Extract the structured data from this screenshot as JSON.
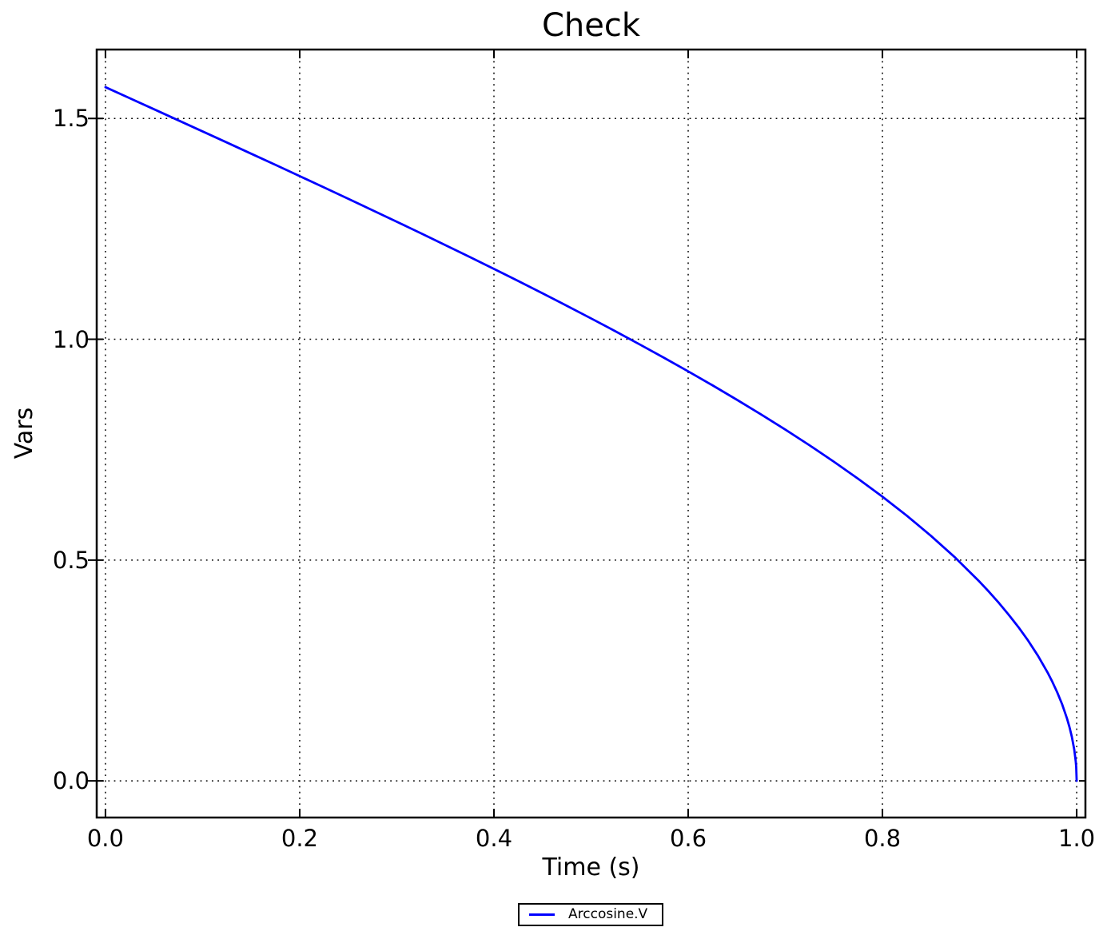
{
  "figure": {
    "background": "#ffffff"
  },
  "colors": {
    "line": "#0000ff",
    "axis": "#000000",
    "grid": "#000000",
    "text": "#000000"
  },
  "legend": {
    "position": "bottom-center",
    "entries": [
      {
        "label": "Arccosine.V",
        "color": "#0000ff"
      }
    ]
  },
  "chart_data": {
    "type": "line",
    "title": "Check",
    "xlabel": "Time (s)",
    "ylabel": "Vars",
    "xlim": [
      -0.009,
      1.009
    ],
    "ylim": [
      -0.083,
      1.656
    ],
    "xticks": [
      0.0,
      0.2,
      0.4,
      0.6,
      0.8,
      1.0
    ],
    "xtick_labels": [
      "0.0",
      "0.2",
      "0.4",
      "0.6",
      "0.8",
      "1.0"
    ],
    "yticks": [
      0.0,
      0.5,
      1.0,
      1.5
    ],
    "ytick_labels": [
      "0.0",
      "0.5",
      "1.0",
      "1.5"
    ],
    "grid": true,
    "grid_style": "dotted",
    "legend_position": "bottom-center",
    "series": [
      {
        "name": "Arccosine.V",
        "color": "#0000ff",
        "x": [
          0,
          0.025,
          0.05,
          0.075,
          0.1,
          0.125,
          0.15,
          0.175,
          0.2,
          0.225,
          0.25,
          0.275,
          0.3,
          0.325,
          0.35,
          0.375,
          0.4,
          0.425,
          0.45,
          0.475,
          0.5,
          0.525,
          0.55,
          0.575,
          0.6,
          0.625,
          0.65,
          0.675,
          0.7,
          0.725,
          0.75,
          0.775,
          0.8,
          0.825,
          0.85,
          0.875,
          0.9,
          0.91,
          0.92,
          0.93,
          0.94,
          0.95,
          0.96,
          0.97,
          0.975,
          0.98,
          0.985,
          0.99,
          0.9925,
          0.995,
          0.9975,
          0.999,
          0.9995,
          1.0
        ],
        "y": [
          1.5708,
          1.5458,
          1.5208,
          1.4957,
          1.4706,
          1.4455,
          1.4202,
          1.3949,
          1.3694,
          1.3438,
          1.3181,
          1.2921,
          1.2661,
          1.2397,
          1.2132,
          1.1864,
          1.1593,
          1.1319,
          1.104,
          1.0759,
          1.0472,
          1.0182,
          0.9884,
          0.9582,
          0.9273,
          0.8957,
          0.8632,
          0.8298,
          0.7954,
          0.7598,
          0.7227,
          0.684,
          0.6435,
          0.6007,
          0.5548,
          0.5054,
          0.451,
          0.4275,
          0.4027,
          0.3762,
          0.3482,
          0.3176,
          0.2838,
          0.2456,
          0.2241,
          0.2003,
          0.1735,
          0.1415,
          0.1225,
          0.1,
          0.0707,
          0.0447,
          0.0316,
          0
        ]
      }
    ]
  }
}
